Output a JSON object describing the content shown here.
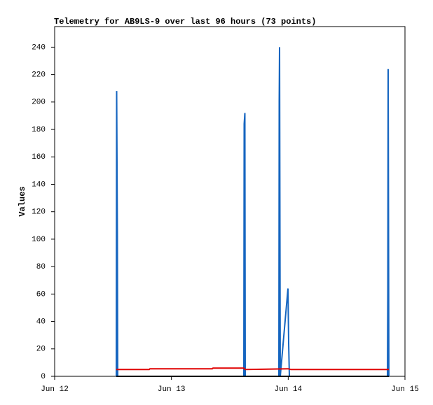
{
  "chart_data": {
    "type": "line",
    "title": "Telemetry for AB9LS-9 over last 96 hours (73 points)",
    "y_label": "Values",
    "xlim": [
      0,
      3
    ],
    "xticks": [
      {
        "value": 0,
        "label": "Jun 12"
      },
      {
        "value": 1,
        "label": "Jun 13"
      },
      {
        "value": 2,
        "label": "Jun 14"
      },
      {
        "value": 3,
        "label": "Jun 15"
      }
    ],
    "ylim": [
      0,
      255
    ],
    "yticks": [
      0,
      20,
      40,
      60,
      80,
      100,
      120,
      140,
      160,
      180,
      200,
      220,
      240
    ],
    "grid": false,
    "series": [
      {
        "color": "#1565c0",
        "x": [
          0.528,
          0.531,
          0.537,
          0.54,
          1.62,
          1.623,
          1.629,
          1.632,
          1.92,
          1.923,
          1.926,
          1.932,
          1.998,
          2.004,
          2.01,
          2.85,
          2.853,
          2.856,
          2.862
        ],
        "values": [
          0,
          208,
          104,
          0,
          0,
          184,
          192,
          0,
          0,
          200,
          240,
          0,
          64,
          24,
          0,
          0,
          64,
          224,
          0
        ]
      },
      {
        "color": "#e00000",
        "x": [
          0.528,
          0.81,
          0.816,
          1.35,
          1.356,
          1.62,
          1.632,
          2.0,
          2.022,
          2.862
        ],
        "values": [
          5,
          5,
          5.5,
          5.5,
          6,
          6,
          5,
          5.5,
          5,
          5
        ]
      },
      {
        "color": "#000000",
        "x": [
          0.528,
          2.862
        ],
        "values": [
          0,
          0
        ]
      }
    ]
  }
}
